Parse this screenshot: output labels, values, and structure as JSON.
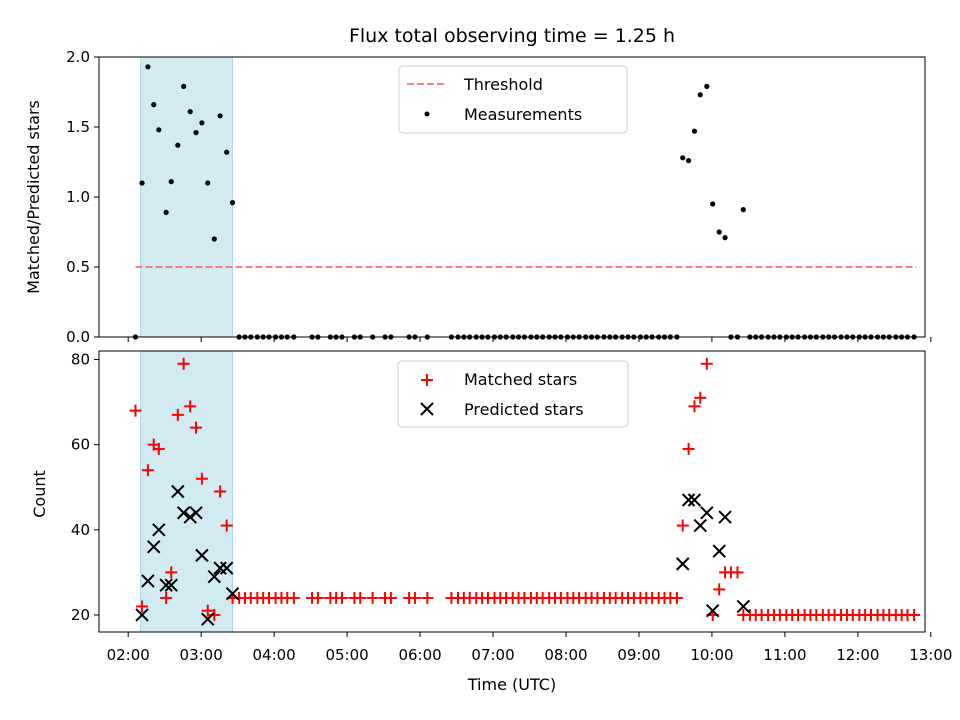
{
  "chart_data": [
    {
      "type": "scatter",
      "title": "Flux total observing time = 1.25 h",
      "xlabel": "",
      "ylabel": "Matched/Predicted stars",
      "ylim": [
        0,
        2.0
      ],
      "yticks": [
        0.0,
        0.5,
        1.0,
        1.5,
        2.0
      ],
      "ytick_labels": [
        "0.0",
        "0.5",
        "1.0",
        "1.5",
        "2.0"
      ],
      "xlim_hours": [
        1.6,
        12.92
      ],
      "xticks_hours": [
        2,
        3,
        4,
        5,
        6,
        7,
        8,
        9,
        10,
        11,
        12,
        13
      ],
      "xtick_labels": [],
      "shaded_span_hours": [
        2.17,
        3.43
      ],
      "shaded_color": "#add8e6",
      "legend_location": "upper center",
      "threshold": {
        "label": "Threshold",
        "value": 0.5,
        "x_range_hours": [
          2.1,
          12.8
        ],
        "color": "#ff7f7f"
      },
      "measurements": {
        "label": "Measurements",
        "color": "#000000",
        "points_hours": [
          [
            2.1,
            0.0
          ],
          [
            2.19,
            1.1
          ],
          [
            2.27,
            1.93
          ],
          [
            2.35,
            1.66
          ],
          [
            2.42,
            1.48
          ],
          [
            2.52,
            0.89
          ],
          [
            2.59,
            1.11
          ],
          [
            2.68,
            1.37
          ],
          [
            2.76,
            1.79
          ],
          [
            2.85,
            1.61
          ],
          [
            2.93,
            1.46
          ],
          [
            3.01,
            1.53
          ],
          [
            3.09,
            1.1
          ],
          [
            3.18,
            0.7
          ],
          [
            3.26,
            1.58
          ],
          [
            3.35,
            1.32
          ],
          [
            3.43,
            0.96
          ],
          [
            3.52,
            0.0
          ],
          [
            3.6,
            0.0
          ],
          [
            3.68,
            0.0
          ],
          [
            3.77,
            0.0
          ],
          [
            3.85,
            0.0
          ],
          [
            3.93,
            0.0
          ],
          [
            4.02,
            0.0
          ],
          [
            4.1,
            0.0
          ],
          [
            4.18,
            0.0
          ],
          [
            4.27,
            0.0
          ],
          [
            4.52,
            0.0
          ],
          [
            4.6,
            0.0
          ],
          [
            4.77,
            0.0
          ],
          [
            4.85,
            0.0
          ],
          [
            4.93,
            0.0
          ],
          [
            5.1,
            0.0
          ],
          [
            5.18,
            0.0
          ],
          [
            5.35,
            0.0
          ],
          [
            5.52,
            0.0
          ],
          [
            5.6,
            0.0
          ],
          [
            5.85,
            0.0
          ],
          [
            5.93,
            0.0
          ],
          [
            6.1,
            0.0
          ],
          [
            6.43,
            0.0
          ],
          [
            6.52,
            0.0
          ],
          [
            6.6,
            0.0
          ],
          [
            6.68,
            0.0
          ],
          [
            6.77,
            0.0
          ],
          [
            6.85,
            0.0
          ],
          [
            6.93,
            0.0
          ],
          [
            7.02,
            0.0
          ],
          [
            7.1,
            0.0
          ],
          [
            7.18,
            0.0
          ],
          [
            7.27,
            0.0
          ],
          [
            7.35,
            0.0
          ],
          [
            7.43,
            0.0
          ],
          [
            7.52,
            0.0
          ],
          [
            7.6,
            0.0
          ],
          [
            7.68,
            0.0
          ],
          [
            7.77,
            0.0
          ],
          [
            7.85,
            0.0
          ],
          [
            7.93,
            0.0
          ],
          [
            8.02,
            0.0
          ],
          [
            8.1,
            0.0
          ],
          [
            8.18,
            0.0
          ],
          [
            8.27,
            0.0
          ],
          [
            8.35,
            0.0
          ],
          [
            8.43,
            0.0
          ],
          [
            8.52,
            0.0
          ],
          [
            8.6,
            0.0
          ],
          [
            8.68,
            0.0
          ],
          [
            8.77,
            0.0
          ],
          [
            8.85,
            0.0
          ],
          [
            8.93,
            0.0
          ],
          [
            9.02,
            0.0
          ],
          [
            9.1,
            0.0
          ],
          [
            9.18,
            0.0
          ],
          [
            9.27,
            0.0
          ],
          [
            9.35,
            0.0
          ],
          [
            9.43,
            0.0
          ],
          [
            9.52,
            0.0
          ],
          [
            9.6,
            1.28
          ],
          [
            9.68,
            1.26
          ],
          [
            9.76,
            1.47
          ],
          [
            9.84,
            1.73
          ],
          [
            9.93,
            1.79
          ],
          [
            10.01,
            0.95
          ],
          [
            10.1,
            0.75
          ],
          [
            10.18,
            0.71
          ],
          [
            10.26,
            0.0
          ],
          [
            10.35,
            0.0
          ],
          [
            10.43,
            0.91
          ],
          [
            10.52,
            0.0
          ],
          [
            10.6,
            0.0
          ],
          [
            10.68,
            0.0
          ],
          [
            10.77,
            0.0
          ],
          [
            10.85,
            0.0
          ],
          [
            10.93,
            0.0
          ],
          [
            11.02,
            0.0
          ],
          [
            11.1,
            0.0
          ],
          [
            11.18,
            0.0
          ],
          [
            11.27,
            0.0
          ],
          [
            11.35,
            0.0
          ],
          [
            11.43,
            0.0
          ],
          [
            11.52,
            0.0
          ],
          [
            11.6,
            0.0
          ],
          [
            11.68,
            0.0
          ],
          [
            11.77,
            0.0
          ],
          [
            11.85,
            0.0
          ],
          [
            11.93,
            0.0
          ],
          [
            12.02,
            0.0
          ],
          [
            12.1,
            0.0
          ],
          [
            12.18,
            0.0
          ],
          [
            12.27,
            0.0
          ],
          [
            12.35,
            0.0
          ],
          [
            12.43,
            0.0
          ],
          [
            12.52,
            0.0
          ],
          [
            12.6,
            0.0
          ],
          [
            12.68,
            0.0
          ],
          [
            12.77,
            0.0
          ]
        ]
      }
    },
    {
      "type": "scatter",
      "title": "",
      "xlabel": "Time (UTC)",
      "ylabel": "Count",
      "ylim": [
        16,
        82
      ],
      "yticks": [
        20,
        40,
        60,
        80
      ],
      "ytick_labels": [
        "20",
        "40",
        "60",
        "80"
      ],
      "xlim_hours": [
        1.6,
        12.92
      ],
      "xticks_hours": [
        2,
        3,
        4,
        5,
        6,
        7,
        8,
        9,
        10,
        11,
        12,
        13
      ],
      "xtick_labels": [
        "02:00",
        "03:00",
        "04:00",
        "05:00",
        "06:00",
        "07:00",
        "08:00",
        "09:00",
        "10:00",
        "11:00",
        "12:00",
        "13:00"
      ],
      "shaded_span_hours": [
        2.17,
        3.43
      ],
      "shaded_color": "#add8e6",
      "legend_location": "upper center",
      "series": [
        {
          "name": "Matched stars",
          "marker": "+",
          "color": "#ff0000",
          "points_hours": [
            [
              2.1,
              68
            ],
            [
              2.19,
              22
            ],
            [
              2.27,
              54
            ],
            [
              2.35,
              60
            ],
            [
              2.42,
              59
            ],
            [
              2.52,
              24
            ],
            [
              2.59,
              30
            ],
            [
              2.68,
              67
            ],
            [
              2.76,
              79
            ],
            [
              2.85,
              69
            ],
            [
              2.93,
              64
            ],
            [
              3.01,
              52
            ],
            [
              3.09,
              21
            ],
            [
              3.18,
              20
            ],
            [
              3.26,
              49
            ],
            [
              3.35,
              41
            ],
            [
              3.43,
              24
            ],
            [
              3.52,
              24
            ],
            [
              3.6,
              24
            ],
            [
              3.68,
              24
            ],
            [
              3.77,
              24
            ],
            [
              3.85,
              24
            ],
            [
              3.93,
              24
            ],
            [
              4.02,
              24
            ],
            [
              4.1,
              24
            ],
            [
              4.18,
              24
            ],
            [
              4.27,
              24
            ],
            [
              4.52,
              24
            ],
            [
              4.6,
              24
            ],
            [
              4.77,
              24
            ],
            [
              4.85,
              24
            ],
            [
              4.93,
              24
            ],
            [
              5.1,
              24
            ],
            [
              5.18,
              24
            ],
            [
              5.35,
              24
            ],
            [
              5.52,
              24
            ],
            [
              5.6,
              24
            ],
            [
              5.85,
              24
            ],
            [
              5.93,
              24
            ],
            [
              6.1,
              24
            ],
            [
              6.43,
              24
            ],
            [
              6.52,
              24
            ],
            [
              6.6,
              24
            ],
            [
              6.68,
              24
            ],
            [
              6.77,
              24
            ],
            [
              6.85,
              24
            ],
            [
              6.93,
              24
            ],
            [
              7.02,
              24
            ],
            [
              7.1,
              24
            ],
            [
              7.18,
              24
            ],
            [
              7.27,
              24
            ],
            [
              7.35,
              24
            ],
            [
              7.43,
              24
            ],
            [
              7.52,
              24
            ],
            [
              7.6,
              24
            ],
            [
              7.68,
              24
            ],
            [
              7.77,
              24
            ],
            [
              7.85,
              24
            ],
            [
              7.93,
              24
            ],
            [
              8.02,
              24
            ],
            [
              8.1,
              24
            ],
            [
              8.18,
              24
            ],
            [
              8.27,
              24
            ],
            [
              8.35,
              24
            ],
            [
              8.43,
              24
            ],
            [
              8.52,
              24
            ],
            [
              8.6,
              24
            ],
            [
              8.68,
              24
            ],
            [
              8.77,
              24
            ],
            [
              8.85,
              24
            ],
            [
              8.93,
              24
            ],
            [
              9.02,
              24
            ],
            [
              9.1,
              24
            ],
            [
              9.18,
              24
            ],
            [
              9.27,
              24
            ],
            [
              9.35,
              24
            ],
            [
              9.43,
              24
            ],
            [
              9.52,
              24
            ],
            [
              9.6,
              41
            ],
            [
              9.68,
              59
            ],
            [
              9.76,
              69
            ],
            [
              9.84,
              71
            ],
            [
              9.93,
              79
            ],
            [
              10.01,
              20
            ],
            [
              10.1,
              26
            ],
            [
              10.18,
              30
            ],
            [
              10.26,
              30
            ],
            [
              10.35,
              30
            ],
            [
              10.43,
              20
            ],
            [
              10.52,
              20
            ],
            [
              10.6,
              20
            ],
            [
              10.68,
              20
            ],
            [
              10.77,
              20
            ],
            [
              10.85,
              20
            ],
            [
              10.93,
              20
            ],
            [
              11.02,
              20
            ],
            [
              11.1,
              20
            ],
            [
              11.18,
              20
            ],
            [
              11.27,
              20
            ],
            [
              11.35,
              20
            ],
            [
              11.43,
              20
            ],
            [
              11.52,
              20
            ],
            [
              11.6,
              20
            ],
            [
              11.68,
              20
            ],
            [
              11.77,
              20
            ],
            [
              11.85,
              20
            ],
            [
              11.93,
              20
            ],
            [
              12.02,
              20
            ],
            [
              12.1,
              20
            ],
            [
              12.18,
              20
            ],
            [
              12.27,
              20
            ],
            [
              12.35,
              20
            ],
            [
              12.43,
              20
            ],
            [
              12.52,
              20
            ],
            [
              12.6,
              20
            ],
            [
              12.68,
              20
            ],
            [
              12.77,
              20
            ]
          ]
        },
        {
          "name": "Predicted stars",
          "marker": "x",
          "color": "#000000",
          "points_hours": [
            [
              2.19,
              20
            ],
            [
              2.27,
              28
            ],
            [
              2.35,
              36
            ],
            [
              2.42,
              40
            ],
            [
              2.52,
              27
            ],
            [
              2.59,
              27
            ],
            [
              2.68,
              49
            ],
            [
              2.76,
              44
            ],
            [
              2.85,
              43
            ],
            [
              2.93,
              44
            ],
            [
              3.01,
              34
            ],
            [
              3.09,
              19
            ],
            [
              3.18,
              29
            ],
            [
              3.26,
              31
            ],
            [
              3.35,
              31
            ],
            [
              3.43,
              25
            ],
            [
              9.6,
              32
            ],
            [
              9.68,
              47
            ],
            [
              9.76,
              47
            ],
            [
              9.84,
              41
            ],
            [
              9.93,
              44
            ],
            [
              10.01,
              21
            ],
            [
              10.1,
              35
            ],
            [
              10.18,
              43
            ],
            [
              10.43,
              22
            ]
          ]
        }
      ]
    }
  ]
}
